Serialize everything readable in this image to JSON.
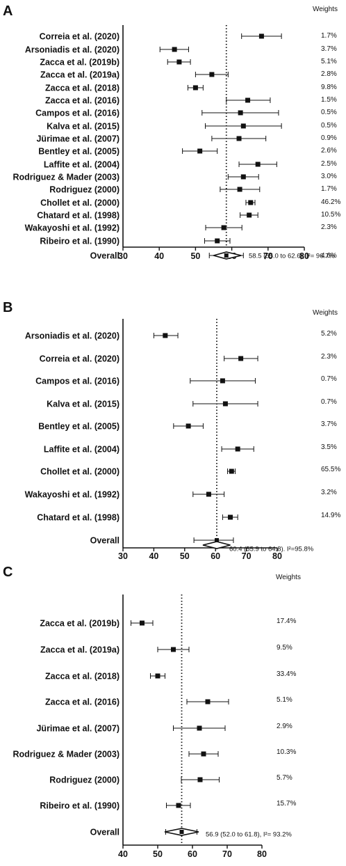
{
  "chart_data": [
    {
      "type": "forest",
      "panel": "A",
      "weights_header": "Weights",
      "xlim": [
        30,
        80
      ],
      "xticks": [
        "30",
        "40",
        "50",
        "60",
        "70",
        "80"
      ],
      "reference_line": 58.5,
      "studies": [
        {
          "label": "Correia et al. (2020)",
          "estimate": 68.2,
          "lo": 62.7,
          "hi": 73.7,
          "weight": "1.7%"
        },
        {
          "label": "Arsoniadis et al. (2020)",
          "estimate": 44.2,
          "lo": 40.2,
          "hi": 48.1,
          "weight": "3.7%"
        },
        {
          "label": "Zacca et al. (2019b)",
          "estimate": 45.5,
          "lo": 42.3,
          "hi": 48.6,
          "weight": "5.1%"
        },
        {
          "label": "Zacca et al. (2019a)",
          "estimate": 54.5,
          "lo": 50.0,
          "hi": 59.0,
          "weight": "2.8%"
        },
        {
          "label": "Zacca et al. (2018)",
          "estimate": 50.0,
          "lo": 47.9,
          "hi": 52.1,
          "weight": "9.8%"
        },
        {
          "label": "Zacca et al. (2016)",
          "estimate": 64.4,
          "lo": 58.5,
          "hi": 70.6,
          "weight": "1.5%"
        },
        {
          "label": "Campos et al. (2016)",
          "estimate": 62.4,
          "lo": 51.8,
          "hi": 72.9,
          "weight": "0.5%"
        },
        {
          "label": "Kalva et al. (2015)",
          "estimate": 63.2,
          "lo": 52.7,
          "hi": 73.7,
          "weight": "0.5%"
        },
        {
          "label": "Jürimae et al. (2007)",
          "estimate": 62.0,
          "lo": 54.5,
          "hi": 69.4,
          "weight": "0.9%"
        },
        {
          "label": "Bentley et al. (2005)",
          "estimate": 51.2,
          "lo": 46.4,
          "hi": 56.0,
          "weight": "2.6%"
        },
        {
          "label": "Laffite et al. (2004)",
          "estimate": 67.2,
          "lo": 62.0,
          "hi": 72.4,
          "weight": "2.5%"
        },
        {
          "label": "Rodriguez & Mader (2003)",
          "estimate": 63.2,
          "lo": 59.0,
          "hi": 67.4,
          "weight": "3.0%"
        },
        {
          "label": "Rodriguez (2000)",
          "estimate": 62.2,
          "lo": 56.8,
          "hi": 67.7,
          "weight": "1.7%"
        },
        {
          "label": "Chollet et al. (2000)",
          "estimate": 65.2,
          "lo": 63.9,
          "hi": 66.4,
          "weight": "46.2%"
        },
        {
          "label": "Chatard et al. (1998)",
          "estimate": 64.8,
          "lo": 62.3,
          "hi": 67.2,
          "weight": "10.5%"
        },
        {
          "label": "Wakayoshi et al. (1992)",
          "estimate": 57.8,
          "lo": 52.8,
          "hi": 62.8,
          "weight": "2.3%"
        },
        {
          "label": "Ribeiro et al. (1990)",
          "estimate": 56.0,
          "lo": 52.5,
          "hi": 59.5,
          "weight": "4.6%"
        }
      ],
      "overall": {
        "label": "Overall",
        "estimate": 58.5,
        "lo": 55.0,
        "hi": 62.6,
        "pi_lo": 53.8,
        "pi_hi": 63.2,
        "text": "58.5 (55.0 to 62.6), I²= 96.7%"
      }
    },
    {
      "type": "forest",
      "panel": "B",
      "weights_header": "Weights",
      "xlim": [
        30,
        80
      ],
      "xticks": [
        "30",
        "40",
        "50",
        "60",
        "70",
        "80"
      ],
      "reference_line": 60.4,
      "studies": [
        {
          "label": "Arsoniadis et al. (2020)",
          "estimate": 43.7,
          "lo": 40.0,
          "hi": 47.8,
          "weight": "5.2%"
        },
        {
          "label": "Correia et al. (2020)",
          "estimate": 68.2,
          "lo": 62.8,
          "hi": 73.7,
          "weight": "2.3%"
        },
        {
          "label": "Campos et al. (2016)",
          "estimate": 62.3,
          "lo": 51.8,
          "hi": 72.9,
          "weight": "0.7%"
        },
        {
          "label": "Kalva et al. (2015)",
          "estimate": 63.2,
          "lo": 52.7,
          "hi": 73.7,
          "weight": "0.7%"
        },
        {
          "label": "Bentley et al. (2005)",
          "estimate": 51.2,
          "lo": 46.4,
          "hi": 56.0,
          "weight": "3.7%"
        },
        {
          "label": "Laffite et al. (2004)",
          "estimate": 67.2,
          "lo": 62.0,
          "hi": 72.4,
          "weight": "3.5%"
        },
        {
          "label": "Chollet et al. (2000)",
          "estimate": 65.2,
          "lo": 63.9,
          "hi": 66.4,
          "weight": "65.5%"
        },
        {
          "label": "Wakayoshi et al. (1992)",
          "estimate": 57.8,
          "lo": 52.7,
          "hi": 62.8,
          "weight": "3.2%"
        },
        {
          "label": "Chatard et al. (1998)",
          "estimate": 64.8,
          "lo": 62.3,
          "hi": 67.2,
          "weight": "14.9%"
        }
      ],
      "overall": {
        "label": "Overall",
        "estimate": 60.4,
        "lo": 55.9,
        "hi": 64.8,
        "pi_lo": 53.0,
        "pi_hi": 65.8,
        "text": "60.4 (55.9 to 64.8). I²=95.8%"
      }
    },
    {
      "type": "forest",
      "panel": "C",
      "weights_header": "Weights",
      "xlim": [
        40,
        80
      ],
      "xticks": [
        "40",
        "50",
        "60",
        "70",
        "80"
      ],
      "reference_line": 56.9,
      "studies": [
        {
          "label": "Zacca et al. (2019b)",
          "estimate": 45.5,
          "lo": 42.3,
          "hi": 48.6,
          "weight": "17.4%"
        },
        {
          "label": "Zacca et al. (2019a)",
          "estimate": 54.5,
          "lo": 50.0,
          "hi": 59.0,
          "weight": "9.5%"
        },
        {
          "label": "Zacca et al. (2018)",
          "estimate": 50.0,
          "lo": 47.9,
          "hi": 52.1,
          "weight": "33.4%"
        },
        {
          "label": "Zacca et al. (2016)",
          "estimate": 64.4,
          "lo": 58.4,
          "hi": 70.4,
          "weight": "5.1%"
        },
        {
          "label": "Jürimae et al. (2007)",
          "estimate": 62.0,
          "lo": 54.5,
          "hi": 69.4,
          "weight": "2.9%"
        },
        {
          "label": "Rodriguez & Mader (2003)",
          "estimate": 63.2,
          "lo": 59.0,
          "hi": 67.4,
          "weight": "10.3%"
        },
        {
          "label": "Rodriguez (2000)",
          "estimate": 62.2,
          "lo": 56.8,
          "hi": 67.7,
          "weight": "5.7%"
        },
        {
          "label": "Ribeiro et al. (1990)",
          "estimate": 56.0,
          "lo": 52.5,
          "hi": 59.4,
          "weight": "15.7%"
        }
      ],
      "overall": {
        "label": "Overall",
        "estimate": 56.9,
        "lo": 52.0,
        "hi": 61.8,
        "pi_lo": 52.3,
        "pi_hi": 61.3,
        "text": "56.9 (52.0 to 61.8), I²= 93.2%"
      }
    }
  ]
}
